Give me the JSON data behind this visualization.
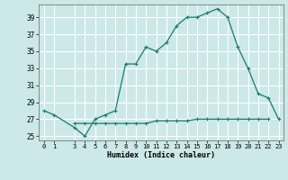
{
  "x": [
    0,
    1,
    3,
    4,
    5,
    6,
    7,
    8,
    9,
    10,
    11,
    12,
    13,
    14,
    15,
    16,
    17,
    18,
    19,
    20,
    21,
    22,
    23
  ],
  "y_main": [
    28.0,
    27.5,
    26.0,
    25.0,
    27.0,
    27.5,
    28.0,
    33.5,
    33.5,
    35.5,
    35.0,
    36.0,
    38.0,
    39.0,
    39.0,
    39.5,
    40.0,
    39.0,
    35.5,
    33.0,
    30.0,
    29.5,
    27.0
  ],
  "y_flat": [
    0,
    0,
    26.5,
    26.5,
    26.5,
    26.5,
    26.5,
    26.5,
    26.5,
    26.5,
    26.8,
    26.8,
    26.8,
    26.8,
    27.0,
    27.0,
    27.0,
    27.0,
    27.0,
    27.0,
    27.0,
    27.0,
    0
  ],
  "line_color": "#1a7a6e",
  "bg_color": "#cce8e8",
  "grid_color": "#ffffff",
  "xlabel": "Humidex (Indice chaleur)",
  "xlim": [
    -0.5,
    23.5
  ],
  "ylim": [
    24.5,
    40.5
  ],
  "yticks": [
    25,
    27,
    29,
    31,
    33,
    35,
    37,
    39
  ],
  "xticks": [
    0,
    1,
    3,
    4,
    5,
    6,
    7,
    8,
    9,
    10,
    11,
    12,
    13,
    14,
    15,
    16,
    17,
    18,
    19,
    20,
    21,
    22,
    23
  ]
}
